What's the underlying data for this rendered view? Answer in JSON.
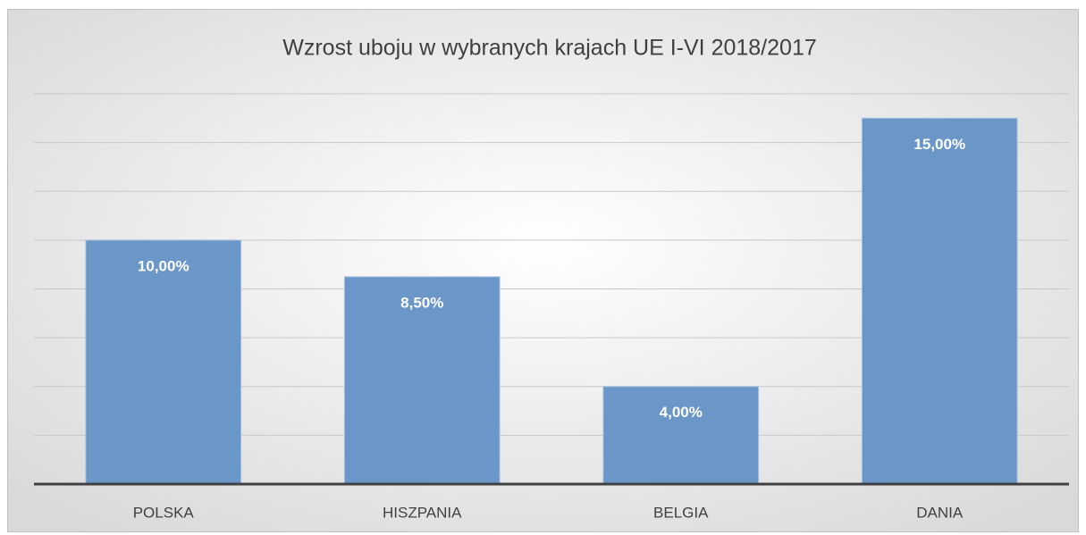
{
  "chart_data": {
    "type": "bar",
    "title": "Wzrost uboju w wybranych krajach UE I-VI 2018/2017",
    "categories": [
      "POLSKA",
      "HISZPANIA",
      "BELGIA",
      "DANIA"
    ],
    "values": [
      10,
      8.5,
      4,
      15
    ],
    "value_labels": [
      "10,00%",
      "8,50%",
      "4,00%",
      "15,00%"
    ],
    "color": "#6a96c8",
    "ylim": [
      0,
      16
    ],
    "yticks": [
      0,
      2,
      4,
      6,
      8,
      10,
      12,
      14,
      16
    ],
    "grid": true
  }
}
